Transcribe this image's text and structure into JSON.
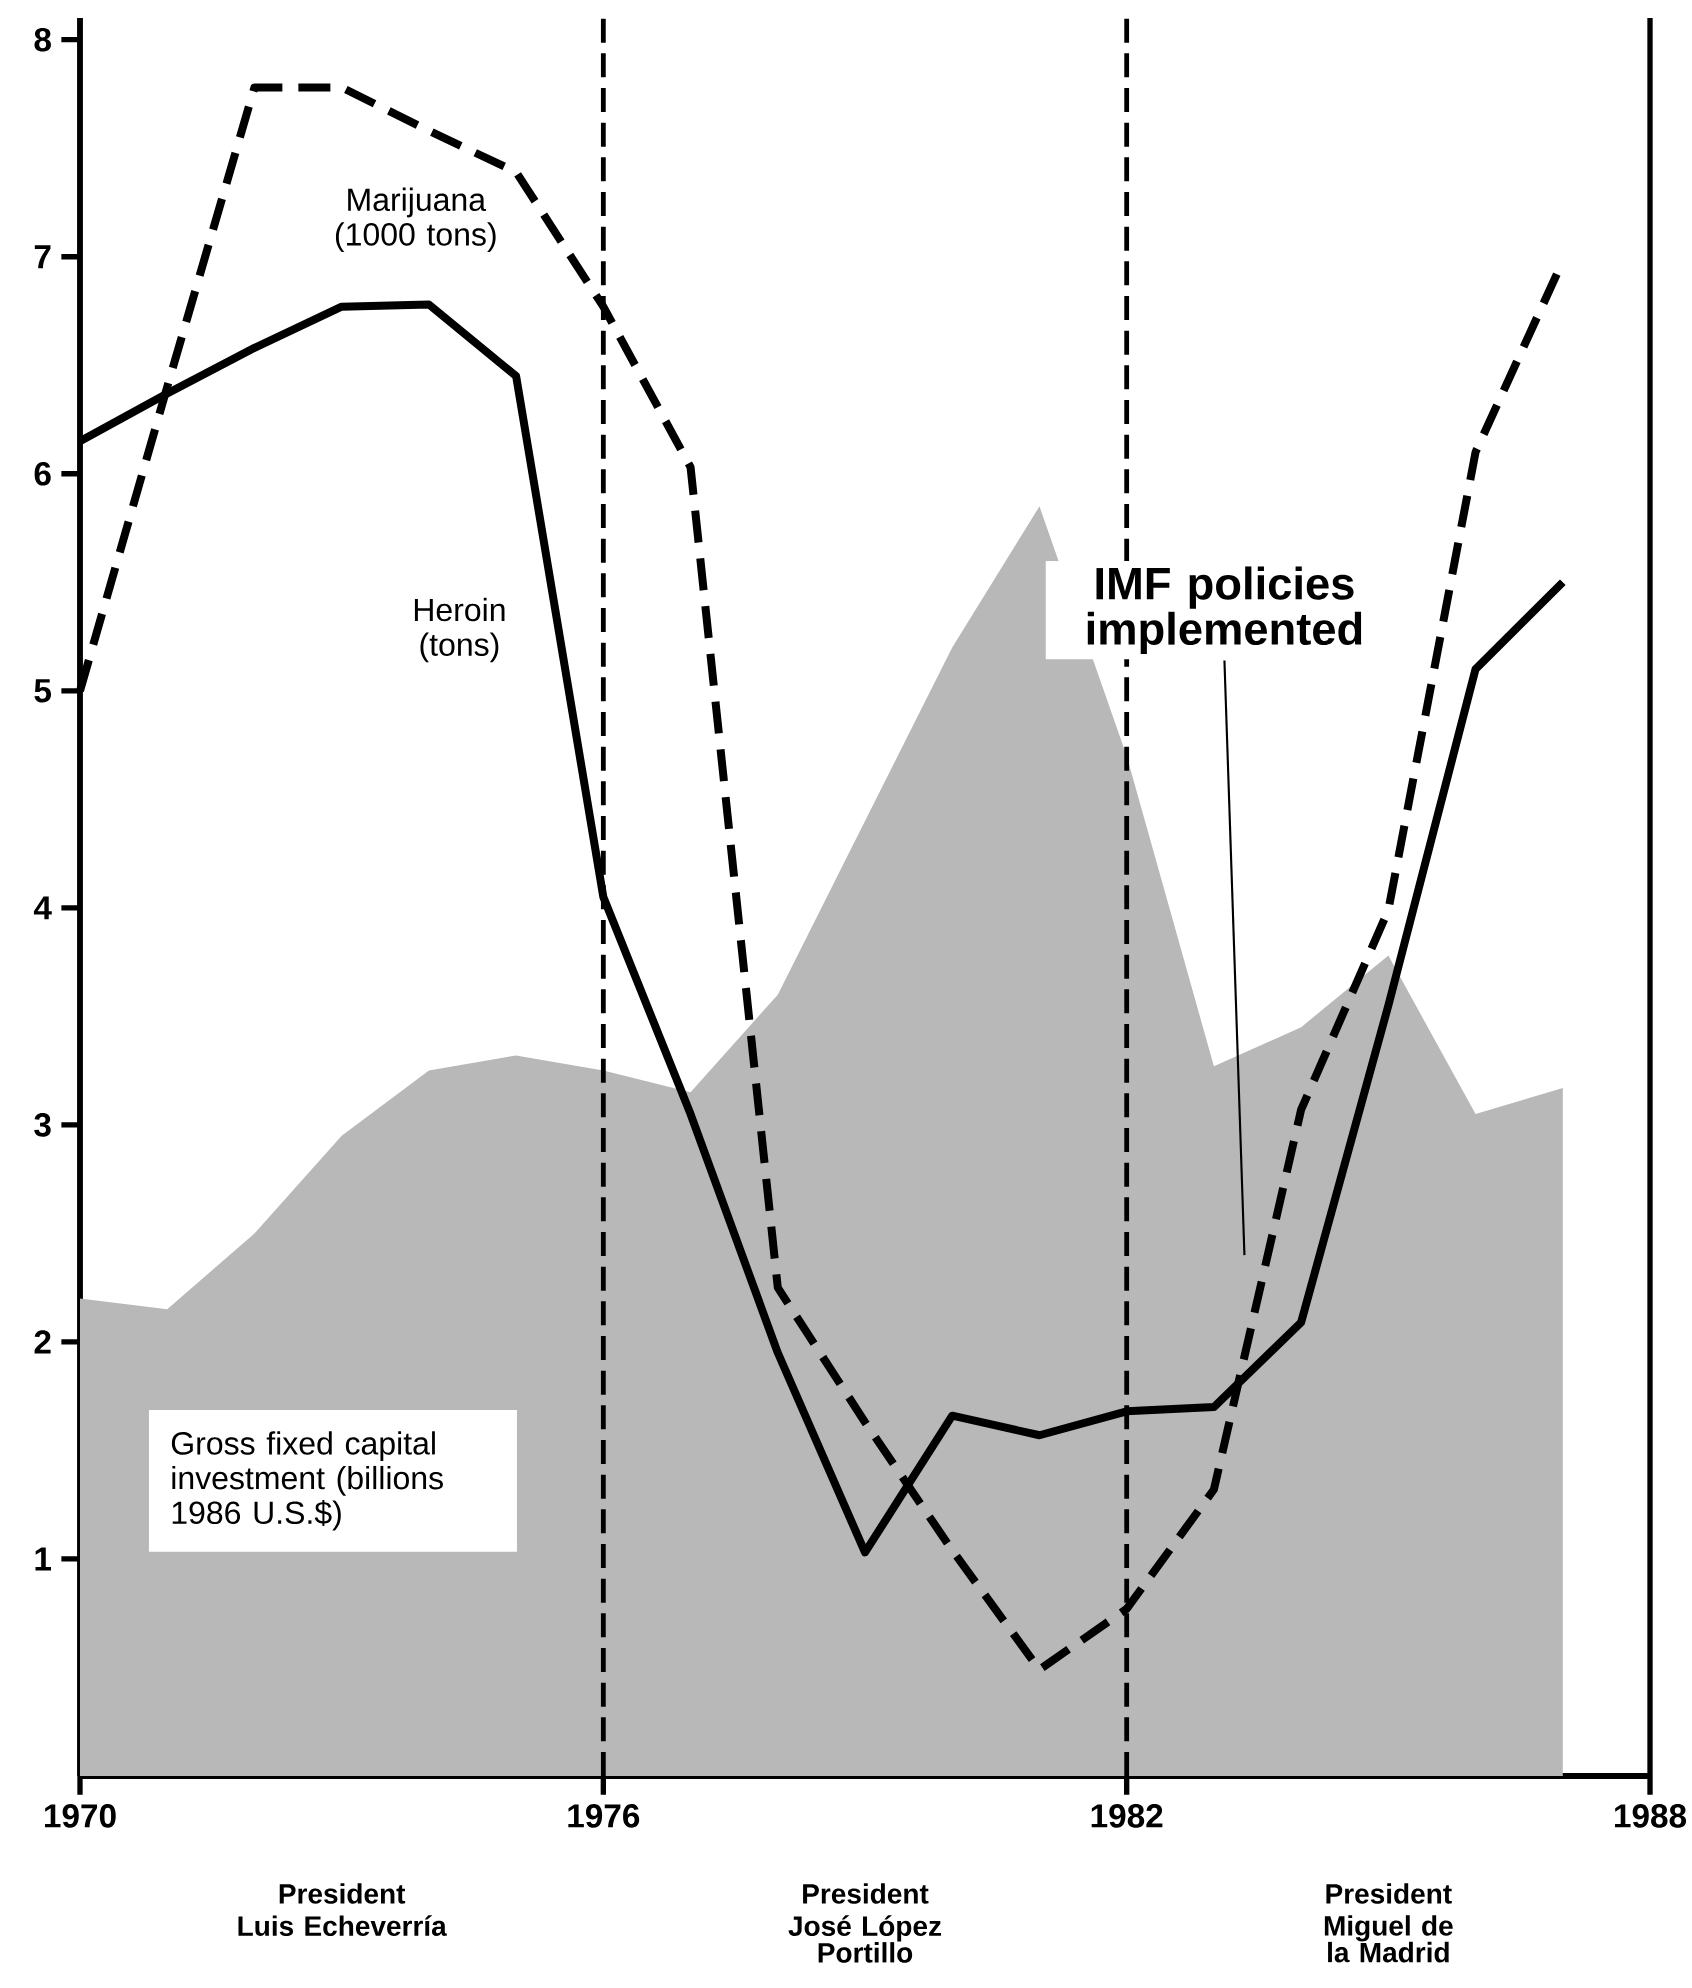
{
  "chart_data": {
    "type": "line",
    "xlim": [
      1970,
      1988
    ],
    "ylim": [
      0,
      8.1
    ],
    "xticks": [
      1970,
      1976,
      1982,
      1988
    ],
    "yticks": [
      1,
      2,
      3,
      4,
      5,
      6,
      7,
      8
    ],
    "grid": false,
    "legend": false,
    "marker": "none",
    "x": [
      1970,
      1971,
      1972,
      1973,
      1974,
      1975,
      1976,
      1977,
      1978,
      1979,
      1980,
      1981,
      1982,
      1983,
      1984,
      1985,
      1986,
      1987
    ],
    "series": [
      {
        "name": "Gross fixed capital investment (billions 1986 U.S.$)",
        "type": "area",
        "color": "#b8b8b8",
        "values": [
          2.2,
          2.15,
          2.5,
          2.95,
          3.25,
          3.32,
          3.25,
          3.15,
          3.6,
          4.4,
          5.2,
          5.85,
          4.7,
          3.27,
          3.45,
          3.78,
          3.05,
          3.17
        ]
      },
      {
        "name": "Marijuana (1000 tons)",
        "color": "#000000",
        "line_style": "dashed",
        "values": [
          5.0,
          6.4,
          7.78,
          7.78,
          7.58,
          7.39,
          6.77,
          6.03,
          2.25,
          1.63,
          1.04,
          0.49,
          0.77,
          1.32,
          3.07,
          3.99,
          6.1,
          6.98
        ]
      },
      {
        "name": "Heroin (tons)",
        "color": "#000000",
        "line_style": "solid",
        "values": [
          6.15,
          6.37,
          6.58,
          6.77,
          6.78,
          6.45,
          4.05,
          3.05,
          1.95,
          1.03,
          1.66,
          1.57,
          1.68,
          1.7,
          2.09,
          3.55,
          5.1,
          5.5
        ]
      }
    ],
    "ref_lines": [
      {
        "axis": "x",
        "value": 1976,
        "line_style": "dashed"
      },
      {
        "axis": "x",
        "value": 1982,
        "line_style": "dashed"
      },
      {
        "axis": "x",
        "value": 1988,
        "line_style": "solid"
      }
    ],
    "annotations": [
      "IMF policies implemented",
      "President",
      "Luis Echeverría",
      "President",
      "José López Portillo",
      "President",
      "Miguel de la Madrid"
    ]
  }
}
